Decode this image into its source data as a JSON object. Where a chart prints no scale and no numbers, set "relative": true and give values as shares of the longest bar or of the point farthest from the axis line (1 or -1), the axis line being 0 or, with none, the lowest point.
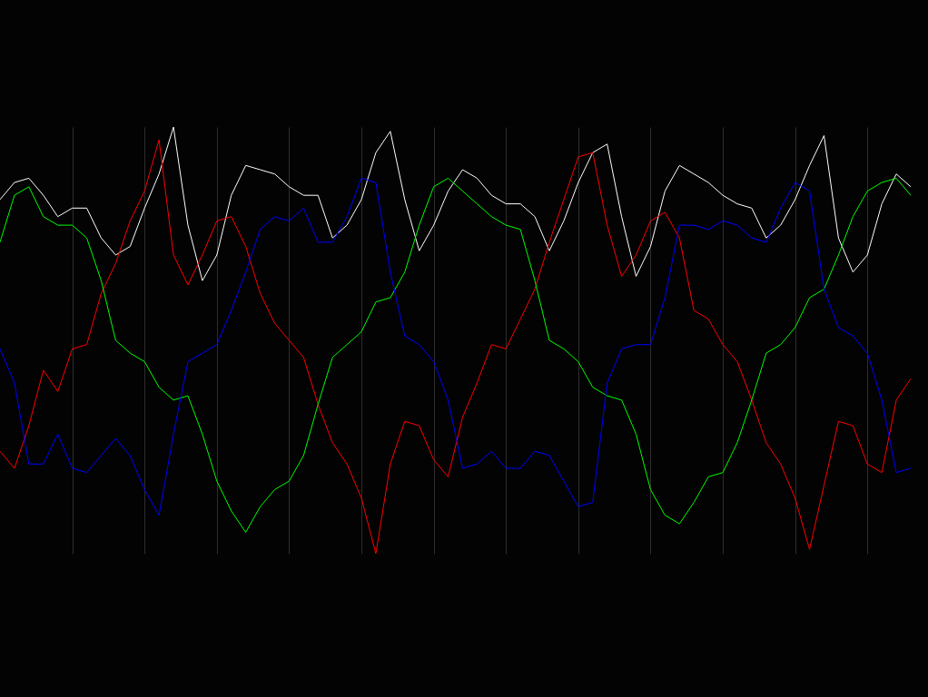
{
  "chart_data": {
    "type": "line",
    "relative": true,
    "grid": "x",
    "line_style": "solid",
    "marker": "none",
    "categories": [
      null,
      null,
      null,
      null,
      null,
      null,
      null,
      null,
      null,
      null,
      null,
      null,
      null,
      null,
      null,
      null,
      null,
      null,
      null,
      null,
      null,
      null,
      null,
      null,
      null,
      null,
      null,
      null,
      null,
      null,
      null,
      null,
      null,
      null,
      null,
      null,
      null,
      null,
      null,
      null,
      null,
      null,
      null,
      null,
      null,
      null,
      null,
      null,
      null,
      null,
      null,
      null,
      null,
      null,
      null,
      null,
      null,
      null,
      null,
      null,
      null,
      null,
      null,
      null
    ],
    "series": [
      {
        "color": "#ffffff",
        "values": [
          0.83,
          0.87,
          0.88,
          0.84,
          0.79,
          0.81,
          0.81,
          0.74,
          0.7,
          0.72,
          0.81,
          0.89,
          1,
          0.77,
          0.64,
          0.7,
          0.84,
          0.91,
          0.9,
          0.89,
          0.86,
          0.84,
          0.84,
          0.74,
          0.77,
          0.83,
          0.94,
          0.99,
          0.83,
          0.71,
          0.77,
          0.85,
          0.9,
          0.88,
          0.84,
          0.82,
          0.82,
          0.79,
          0.71,
          0.78,
          0.87,
          0.94,
          0.96,
          0.79,
          0.65,
          0.72,
          0.85,
          0.91,
          0.89,
          0.87,
          0.84,
          0.82,
          0.81,
          0.74,
          0.77,
          0.83,
          0.91,
          0.98,
          0.74,
          0.66,
          0.7,
          0.82,
          0.89,
          0.86
        ]
      },
      {
        "color": "#ff0000",
        "values": [
          0.24,
          0.2,
          0.3,
          0.43,
          0.38,
          0.48,
          0.49,
          0.61,
          0.68,
          0.78,
          0.85,
          0.97,
          0.7,
          0.63,
          0.7,
          0.78,
          0.79,
          0.72,
          0.61,
          0.54,
          0.5,
          0.46,
          0.35,
          0.26,
          0.21,
          0.13,
          0,
          0.21,
          0.31,
          0.3,
          0.22,
          0.18,
          0.32,
          0.4,
          0.49,
          0.48,
          0.55,
          0.62,
          0.73,
          0.83,
          0.93,
          0.94,
          0.77,
          0.65,
          0.7,
          0.78,
          0.8,
          0.74,
          0.57,
          0.55,
          0.49,
          0.45,
          0.36,
          0.26,
          0.21,
          0.13,
          0.01,
          0.16,
          0.31,
          0.3,
          0.21,
          0.19,
          0.36,
          0.41
        ]
      },
      {
        "color": "#00ff00",
        "values": [
          0.73,
          0.84,
          0.86,
          0.79,
          0.77,
          0.77,
          0.74,
          0.64,
          0.5,
          0.47,
          0.45,
          0.39,
          0.36,
          0.37,
          0.28,
          0.17,
          0.1,
          0.05,
          0.11,
          0.15,
          0.17,
          0.23,
          0.35,
          0.46,
          0.49,
          0.52,
          0.59,
          0.6,
          0.66,
          0.77,
          0.86,
          0.88,
          0.85,
          0.82,
          0.79,
          0.77,
          0.76,
          0.64,
          0.5,
          0.48,
          0.45,
          0.39,
          0.37,
          0.36,
          0.28,
          0.15,
          0.09,
          0.07,
          0.12,
          0.18,
          0.19,
          0.26,
          0.36,
          0.47,
          0.49,
          0.53,
          0.6,
          0.62,
          0.7,
          0.79,
          0.85,
          0.87,
          0.88,
          0.84
        ]
      },
      {
        "color": "#0000ff",
        "values": [
          0.48,
          0.4,
          0.21,
          0.21,
          0.28,
          0.2,
          0.19,
          0.23,
          0.27,
          0.23,
          0.15,
          0.09,
          0.28,
          0.45,
          0.47,
          0.49,
          0.57,
          0.66,
          0.76,
          0.79,
          0.78,
          0.81,
          0.73,
          0.73,
          0.79,
          0.88,
          0.87,
          0.66,
          0.51,
          0.49,
          0.45,
          0.36,
          0.2,
          0.21,
          0.24,
          0.2,
          0.2,
          0.24,
          0.23,
          0.17,
          0.11,
          0.12,
          0.4,
          0.48,
          0.49,
          0.49,
          0.6,
          0.77,
          0.77,
          0.76,
          0.78,
          0.77,
          0.74,
          0.73,
          0.81,
          0.87,
          0.85,
          0.62,
          0.53,
          0.51,
          0.47,
          0.36,
          0.19,
          0.2
        ]
      }
    ]
  }
}
